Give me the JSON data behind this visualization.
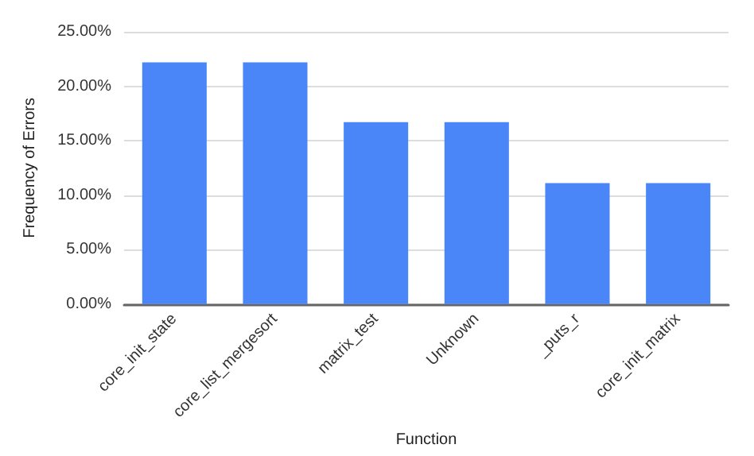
{
  "chart_data": {
    "type": "bar",
    "xlabel": "Function",
    "ylabel": "Frequency of Errors",
    "categories": [
      "core_init_state",
      "core_list_mergesort",
      "matrix_test",
      "Unknown",
      "_puts_r",
      "core_init_matrix"
    ],
    "values": [
      22.2,
      22.2,
      16.7,
      16.7,
      11.1,
      11.1
    ],
    "color": "#4a86f7",
    "ylim": [
      0,
      25
    ],
    "yticks": [
      {
        "value": 0,
        "label": "0.00%"
      },
      {
        "value": 5,
        "label": "5.00%"
      },
      {
        "value": 10,
        "label": "10.00%"
      },
      {
        "value": 15,
        "label": "15.00%"
      },
      {
        "value": 20,
        "label": "20.00%"
      },
      {
        "value": 25,
        "label": "25.00%"
      }
    ],
    "grid": "y"
  }
}
